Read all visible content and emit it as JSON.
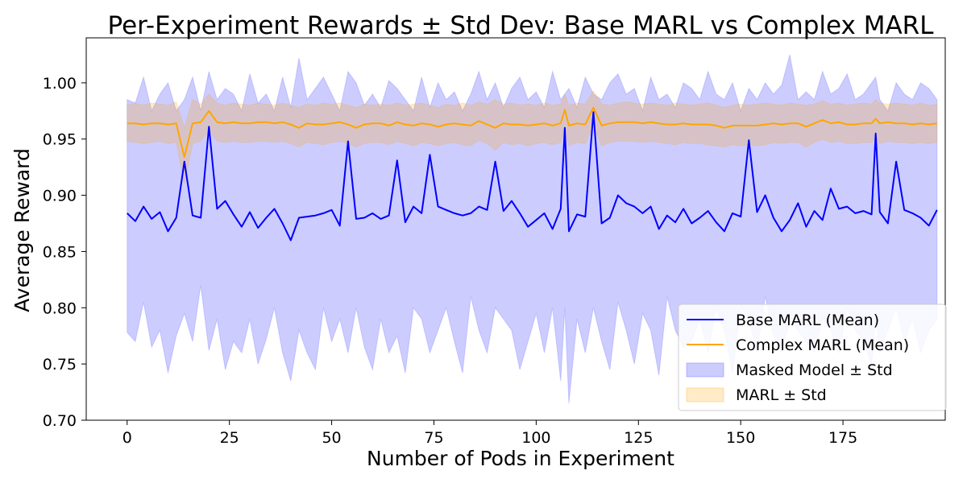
{
  "chart_data": {
    "type": "line",
    "title": "Per-Experiment Rewards ± Std Dev: Base MARL vs Complex MARL",
    "xlabel": "Number of Pods in Experiment",
    "ylabel": "Average Reward",
    "xlim": [
      -10,
      200
    ],
    "ylim": [
      0.7,
      1.04
    ],
    "xticks": [
      0,
      25,
      50,
      75,
      100,
      125,
      150,
      175
    ],
    "yticks": [
      0.7,
      0.75,
      0.8,
      0.85,
      0.9,
      0.95,
      1.0
    ],
    "xtick_labels": [
      "0",
      "25",
      "50",
      "75",
      "100",
      "125",
      "150",
      "175"
    ],
    "ytick_labels": [
      "0.70",
      "0.75",
      "0.80",
      "0.85",
      "0.90",
      "0.95",
      "1.00"
    ],
    "grid": false,
    "legend_position": "lower-right",
    "legend": [
      "Base MARL (Mean)",
      "Complex MARL (Mean)",
      "Masked Model ± Std",
      "MARL ± Std"
    ],
    "x": [
      0,
      2,
      4,
      6,
      8,
      10,
      12,
      14,
      16,
      18,
      20,
      22,
      24,
      26,
      28,
      30,
      32,
      34,
      36,
      38,
      40,
      42,
      44,
      46,
      48,
      50,
      52,
      54,
      56,
      58,
      60,
      62,
      64,
      66,
      68,
      70,
      72,
      74,
      76,
      78,
      80,
      82,
      84,
      86,
      88,
      90,
      92,
      94,
      96,
      98,
      100,
      102,
      104,
      106,
      107,
      108,
      110,
      112,
      114,
      116,
      118,
      120,
      122,
      124,
      126,
      128,
      130,
      132,
      134,
      136,
      138,
      140,
      142,
      144,
      146,
      148,
      150,
      152,
      154,
      156,
      158,
      160,
      162,
      164,
      166,
      168,
      170,
      172,
      174,
      176,
      178,
      180,
      182,
      183,
      184,
      186,
      188,
      190,
      192,
      194,
      196,
      198
    ],
    "series": [
      {
        "name": "Base MARL (Mean)",
        "color": "#0000ff",
        "mean": [
          0.884,
          0.877,
          0.89,
          0.879,
          0.885,
          0.868,
          0.88,
          0.93,
          0.882,
          0.88,
          0.961,
          0.888,
          0.895,
          0.883,
          0.872,
          0.885,
          0.871,
          0.88,
          0.888,
          0.875,
          0.86,
          0.88,
          0.881,
          0.882,
          0.884,
          0.887,
          0.873,
          0.948,
          0.879,
          0.88,
          0.884,
          0.879,
          0.882,
          0.931,
          0.876,
          0.89,
          0.884,
          0.936,
          0.89,
          0.887,
          0.884,
          0.882,
          0.884,
          0.89,
          0.887,
          0.93,
          0.886,
          0.895,
          0.884,
          0.872,
          0.878,
          0.884,
          0.87,
          0.888,
          0.96,
          0.868,
          0.883,
          0.881,
          0.974,
          0.875,
          0.88,
          0.9,
          0.893,
          0.89,
          0.884,
          0.89,
          0.87,
          0.882,
          0.876,
          0.888,
          0.875,
          0.88,
          0.886,
          0.876,
          0.868,
          0.884,
          0.881,
          0.949,
          0.885,
          0.9,
          0.88,
          0.868,
          0.878,
          0.893,
          0.872,
          0.886,
          0.878,
          0.906,
          0.888,
          0.89,
          0.884,
          0.886,
          0.883,
          0.955,
          0.885,
          0.875,
          0.93,
          0.887,
          0.884,
          0.88,
          0.873,
          0.887
        ],
        "std_color": "#8080ff",
        "upper": [
          0.985,
          0.982,
          1.005,
          0.975,
          0.99,
          1.0,
          0.975,
          0.985,
          1.005,
          0.975,
          1.01,
          0.985,
          0.995,
          0.99,
          0.975,
          1.008,
          0.982,
          0.99,
          0.975,
          1.005,
          0.978,
          1.022,
          0.985,
          0.995,
          1.005,
          0.99,
          0.975,
          1.01,
          1.0,
          0.98,
          0.99,
          0.978,
          1.002,
          0.995,
          0.985,
          0.975,
          1.005,
          0.978,
          1.0,
          0.985,
          0.992,
          0.975,
          0.99,
          1.01,
          0.985,
          1.0,
          0.978,
          0.995,
          1.005,
          0.985,
          0.992,
          0.978,
          1.01,
          0.985,
          0.99,
          0.995,
          0.978,
          1.005,
          0.99,
          0.985,
          1.0,
          1.008,
          0.99,
          0.995,
          0.975,
          1.005,
          0.985,
          0.99,
          0.978,
          1.0,
          0.995,
          0.985,
          1.01,
          0.99,
          0.985,
          1.0,
          0.975,
          0.995,
          0.985,
          1.0,
          0.99,
          0.998,
          1.025,
          0.985,
          0.992,
          0.985,
          1.01,
          0.99,
          0.995,
          1.008,
          0.985,
          0.99,
          1.0,
          1.005,
          0.985,
          0.975,
          1.0,
          0.99,
          0.985,
          1.0,
          0.995,
          0.985
        ],
        "lower": [
          0.778,
          0.77,
          0.805,
          0.765,
          0.78,
          0.742,
          0.775,
          0.795,
          0.77,
          0.82,
          0.762,
          0.79,
          0.745,
          0.77,
          0.76,
          0.79,
          0.75,
          0.772,
          0.8,
          0.76,
          0.735,
          0.78,
          0.76,
          0.745,
          0.8,
          0.77,
          0.79,
          0.76,
          0.8,
          0.765,
          0.745,
          0.79,
          0.76,
          0.775,
          0.742,
          0.8,
          0.79,
          0.76,
          0.78,
          0.8,
          0.77,
          0.742,
          0.81,
          0.78,
          0.76,
          0.8,
          0.79,
          0.78,
          0.745,
          0.77,
          0.795,
          0.76,
          0.8,
          0.735,
          0.8,
          0.715,
          0.79,
          0.76,
          0.8,
          0.77,
          0.745,
          0.805,
          0.78,
          0.75,
          0.795,
          0.78,
          0.74,
          0.81,
          0.78,
          0.765,
          0.77,
          0.79,
          0.76,
          0.8,
          0.78,
          0.742,
          0.8,
          0.79,
          0.76,
          0.81,
          0.775,
          0.76,
          0.79,
          0.78,
          0.77,
          0.76,
          0.79,
          0.78,
          0.76,
          0.8,
          0.78,
          0.77,
          0.75,
          0.79,
          0.76,
          0.78,
          0.8,
          0.77,
          0.79,
          0.76,
          0.78,
          0.79
        ]
      },
      {
        "name": "Complex MARL (Mean)",
        "color": "#ffa500",
        "mean": [
          0.964,
          0.964,
          0.963,
          0.964,
          0.964,
          0.963,
          0.964,
          0.934,
          0.964,
          0.965,
          0.975,
          0.965,
          0.964,
          0.965,
          0.964,
          0.964,
          0.965,
          0.965,
          0.964,
          0.965,
          0.963,
          0.96,
          0.964,
          0.963,
          0.963,
          0.964,
          0.965,
          0.963,
          0.96,
          0.963,
          0.964,
          0.964,
          0.962,
          0.965,
          0.963,
          0.962,
          0.964,
          0.963,
          0.961,
          0.963,
          0.964,
          0.963,
          0.962,
          0.966,
          0.963,
          0.96,
          0.964,
          0.963,
          0.963,
          0.962,
          0.963,
          0.964,
          0.962,
          0.964,
          0.976,
          0.962,
          0.964,
          0.963,
          0.978,
          0.962,
          0.964,
          0.965,
          0.965,
          0.965,
          0.964,
          0.965,
          0.964,
          0.963,
          0.963,
          0.964,
          0.963,
          0.963,
          0.963,
          0.962,
          0.96,
          0.962,
          0.962,
          0.962,
          0.962,
          0.963,
          0.964,
          0.963,
          0.964,
          0.964,
          0.961,
          0.964,
          0.967,
          0.964,
          0.965,
          0.963,
          0.963,
          0.964,
          0.964,
          0.968,
          0.964,
          0.965,
          0.964,
          0.964,
          0.963,
          0.964,
          0.963,
          0.964
        ],
        "std_color": "#ffa500",
        "upper": [
          0.98,
          0.982,
          0.98,
          0.982,
          0.981,
          0.98,
          0.983,
          0.96,
          0.985,
          0.981,
          0.99,
          0.982,
          0.98,
          0.982,
          0.981,
          0.98,
          0.982,
          0.981,
          0.98,
          0.982,
          0.98,
          0.978,
          0.981,
          0.98,
          0.982,
          0.981,
          0.982,
          0.98,
          0.978,
          0.981,
          0.98,
          0.981,
          0.98,
          0.982,
          0.98,
          0.981,
          0.982,
          0.98,
          0.978,
          0.981,
          0.98,
          0.982,
          0.98,
          0.983,
          0.981,
          0.985,
          0.981,
          0.982,
          0.98,
          0.981,
          0.98,
          0.982,
          0.98,
          0.981,
          0.99,
          0.98,
          0.982,
          0.981,
          0.993,
          0.981,
          0.98,
          0.982,
          0.983,
          0.982,
          0.981,
          0.982,
          0.981,
          0.98,
          0.982,
          0.981,
          0.98,
          0.981,
          0.982,
          0.98,
          0.978,
          0.98,
          0.981,
          0.98,
          0.981,
          0.982,
          0.981,
          0.98,
          0.982,
          0.981,
          0.98,
          0.981,
          0.984,
          0.981,
          0.982,
          0.98,
          0.981,
          0.982,
          0.981,
          0.985,
          0.982,
          0.981,
          0.982,
          0.981,
          0.98,
          0.982,
          0.98,
          0.981
        ],
        "lower": [
          0.948,
          0.947,
          0.946,
          0.947,
          0.948,
          0.946,
          0.947,
          0.91,
          0.946,
          0.948,
          0.958,
          0.948,
          0.947,
          0.948,
          0.947,
          0.947,
          0.948,
          0.948,
          0.947,
          0.948,
          0.946,
          0.943,
          0.947,
          0.946,
          0.945,
          0.947,
          0.948,
          0.946,
          0.943,
          0.946,
          0.947,
          0.947,
          0.945,
          0.948,
          0.946,
          0.944,
          0.947,
          0.946,
          0.944,
          0.946,
          0.947,
          0.945,
          0.944,
          0.949,
          0.946,
          0.94,
          0.947,
          0.945,
          0.946,
          0.944,
          0.946,
          0.947,
          0.945,
          0.947,
          0.96,
          0.944,
          0.947,
          0.946,
          0.962,
          0.944,
          0.947,
          0.948,
          0.948,
          0.948,
          0.947,
          0.948,
          0.947,
          0.946,
          0.945,
          0.947,
          0.946,
          0.946,
          0.945,
          0.944,
          0.943,
          0.945,
          0.944,
          0.945,
          0.944,
          0.945,
          0.947,
          0.946,
          0.947,
          0.947,
          0.943,
          0.947,
          0.95,
          0.947,
          0.948,
          0.946,
          0.946,
          0.947,
          0.947,
          0.951,
          0.946,
          0.948,
          0.947,
          0.947,
          0.946,
          0.947,
          0.946,
          0.947
        ]
      }
    ]
  }
}
